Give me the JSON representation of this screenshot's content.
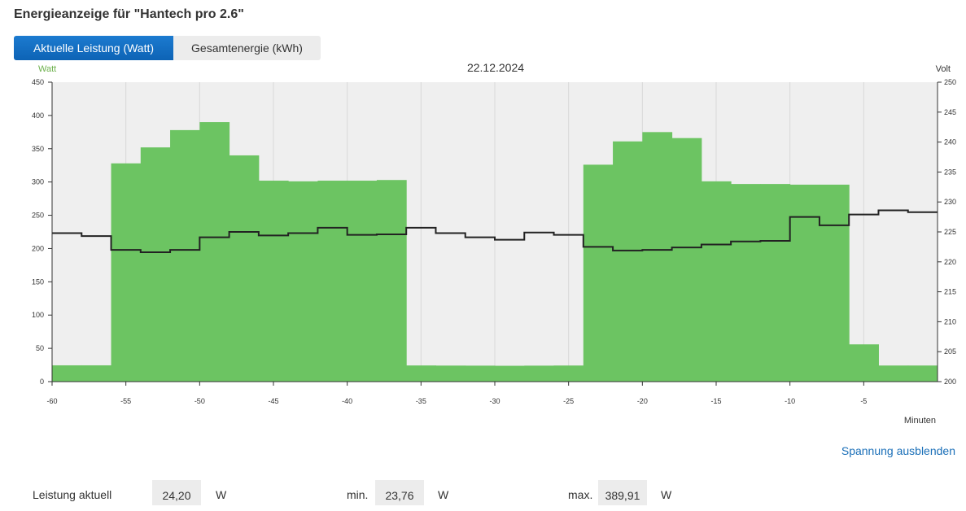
{
  "header": {
    "title": "Energieanzeige für \"Hantech pro 2.6\""
  },
  "tabs": [
    {
      "label": "Aktuelle Leistung (Watt)",
      "active": true
    },
    {
      "label": "Gesamtenergie (kWh)",
      "active": false
    }
  ],
  "chart_data": {
    "type": "area",
    "title": "22.12.2024",
    "xlabel": "Minuten",
    "ylabel_left": "Watt",
    "ylabel_right": "Volt",
    "xlim": [
      -60,
      0
    ],
    "ylim_left": [
      0,
      450
    ],
    "ylim_right": [
      200,
      250
    ],
    "x_ticks": [
      -60,
      -55,
      -50,
      -45,
      -40,
      -35,
      -30,
      -25,
      -20,
      -15,
      -10,
      -5
    ],
    "y_ticks_left": [
      0,
      50,
      100,
      150,
      200,
      250,
      300,
      350,
      400,
      450
    ],
    "y_ticks_right": [
      200,
      205,
      210,
      215,
      220,
      225,
      230,
      235,
      240,
      245,
      250
    ],
    "grid": true,
    "series": [
      {
        "name": "Watt",
        "axis": "left",
        "color": "#6cc462",
        "step": true,
        "x": [
          -60,
          -58,
          -56,
          -54,
          -52,
          -50,
          -48,
          -46,
          -44,
          -42,
          -40,
          -38,
          -36,
          -34,
          -32,
          -30,
          -28,
          -26,
          -24,
          -22,
          -20,
          -18,
          -16,
          -14,
          -12,
          -10,
          -8,
          -6,
          -4,
          -2
        ],
        "values": [
          24.5,
          24.5,
          328,
          352,
          378,
          390,
          340,
          302,
          301,
          302,
          302,
          303,
          24.3,
          24.1,
          24.0,
          23.8,
          24.0,
          24.2,
          326,
          361,
          375,
          366,
          301,
          297,
          297,
          296,
          296,
          56,
          24.2,
          24.2
        ]
      },
      {
        "name": "Volt",
        "axis": "right",
        "color": "#222222",
        "step": true,
        "x": [
          -60,
          -58,
          -56,
          -54,
          -52,
          -50,
          -48,
          -46,
          -44,
          -42,
          -40,
          -38,
          -36,
          -34,
          -32,
          -30,
          -28,
          -26,
          -24,
          -22,
          -20,
          -18,
          -16,
          -14,
          -12,
          -10,
          -8,
          -6,
          -4,
          -2
        ],
        "values": [
          224.8,
          224.3,
          222.0,
          221.6,
          222.0,
          224.1,
          225.0,
          224.4,
          224.8,
          225.7,
          224.5,
          224.6,
          225.7,
          224.8,
          224.1,
          223.7,
          224.9,
          224.5,
          222.5,
          221.9,
          222.0,
          222.4,
          222.9,
          223.4,
          223.5,
          227.5,
          226.1,
          227.9,
          228.6,
          228.3
        ]
      }
    ]
  },
  "toggle_link": "Spannung ausblenden",
  "stats": {
    "current_label": "Leistung aktuell",
    "current_value": "24,20",
    "current_unit": "W",
    "min_label": "min.",
    "min_value": "23,76",
    "min_unit": "W",
    "max_label": "max.",
    "max_value": "389,91",
    "max_unit": "W"
  }
}
